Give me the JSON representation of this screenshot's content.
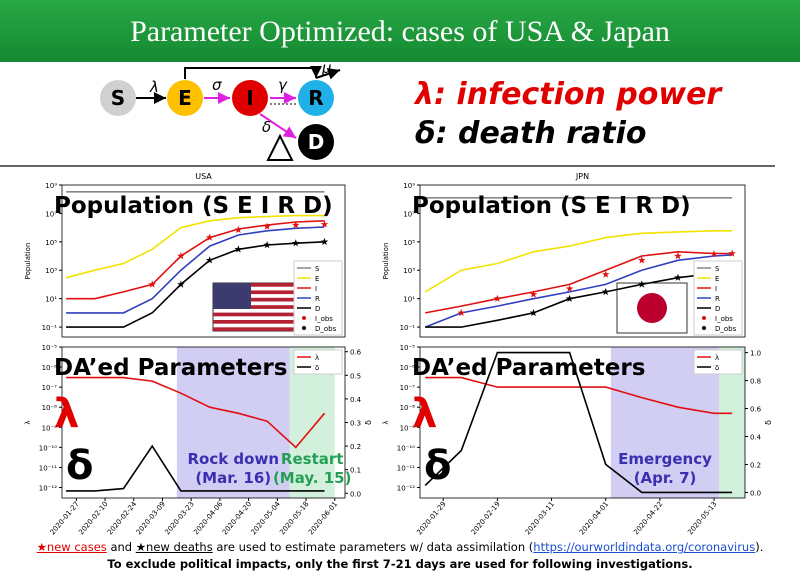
{
  "title": "Parameter Optimized: cases of USA & Japan",
  "diagram": {
    "nodes": [
      "S",
      "E",
      "I",
      "R",
      "D"
    ],
    "edge_labels": [
      "λ",
      "σ",
      "γ",
      "μ",
      "δ"
    ]
  },
  "key": {
    "lambda": "λ: infection power",
    "delta": "δ: death ratio"
  },
  "chart_data": [
    {
      "type": "line",
      "title": "USA",
      "overlay_title": "Population (S E I R D)",
      "ylabel": "Population",
      "ylog": true,
      "legend": "lower right",
      "x": [
        "2020-01-22",
        "2020-02-05",
        "2020-02-19",
        "2020-03-04",
        "2020-03-18",
        "2020-04-01",
        "2020-04-15",
        "2020-04-29",
        "2020-05-13",
        "2020-05-27"
      ],
      "xlim": [
        "2020-01-20",
        "2020-06-06"
      ],
      "ylim": [
        0.02,
        1000000000
      ],
      "yticks": [
        {
          "value": 0.1,
          "label": "10⁻¹"
        },
        {
          "value": 10,
          "label": "10¹"
        },
        {
          "value": 1000,
          "label": "10³"
        },
        {
          "value": 100000,
          "label": "10⁵"
        },
        {
          "value": 10000000,
          "label": "10⁷"
        },
        {
          "value": 1000000000,
          "label": "10⁹"
        }
      ],
      "series": [
        {
          "name": "S",
          "color": "#888888",
          "values": [
            330000000,
            330000000,
            330000000,
            330000000,
            330000000,
            330000000,
            330000000,
            330000000,
            330000000,
            330000000
          ]
        },
        {
          "name": "E",
          "color": "#f2e200",
          "values": [
            300,
            1000,
            3000,
            30000,
            1000000,
            3000000,
            5000000,
            6000000,
            7000000,
            7000000
          ]
        },
        {
          "name": "I",
          "color": "#e01010",
          "values": [
            10,
            10,
            30,
            100,
            10000,
            200000,
            800000,
            1500000,
            2500000,
            3000000
          ]
        },
        {
          "name": "R",
          "color": "#3040c0",
          "values": [
            1,
            1,
            1,
            10,
            1000,
            50000,
            300000,
            600000,
            900000,
            1100000
          ]
        },
        {
          "name": "D",
          "color": "#000000",
          "values": [
            0.1,
            0.1,
            0.1,
            1,
            100,
            5000,
            30000,
            60000,
            80000,
            100000
          ]
        },
        {
          "name": "I_obs",
          "color": "#e01010",
          "marker": "star",
          "values": [
            null,
            null,
            null,
            100,
            10000,
            200000,
            700000,
            1200000,
            1500000,
            1700000
          ]
        },
        {
          "name": "D_obs",
          "color": "#000000",
          "marker": "star",
          "values": [
            null,
            null,
            null,
            null,
            100,
            5000,
            30000,
            60000,
            80000,
            100000
          ]
        }
      ]
    },
    {
      "type": "line",
      "overlay_title": "DA’ed Parameters",
      "overlay_lambda": "λ",
      "overlay_delta": "δ",
      "ylabel": "λ",
      "y2label": "δ",
      "ylog": true,
      "legend": "upper right",
      "x": [
        "2020-01-22",
        "2020-02-05",
        "2020-02-19",
        "2020-03-04",
        "2020-03-18",
        "2020-04-01",
        "2020-04-15",
        "2020-04-29",
        "2020-05-13",
        "2020-05-27"
      ],
      "xlim": [
        "2020-01-20",
        "2020-06-06"
      ],
      "ylim": [
        3e-13,
        1e-05
      ],
      "yticks": [
        {
          "value": 1e-12,
          "label": "10⁻¹²"
        },
        {
          "value": 1e-11,
          "label": "10⁻¹¹"
        },
        {
          "value": 1e-10,
          "label": "10⁻¹⁰"
        },
        {
          "value": 1e-09,
          "label": "10⁻⁹"
        },
        {
          "value": 1e-08,
          "label": "10⁻⁸"
        },
        {
          "value": 1e-07,
          "label": "10⁻⁷"
        },
        {
          "value": 1e-06,
          "label": "10⁻⁶"
        },
        {
          "value": 1e-05,
          "label": "10⁻⁵"
        }
      ],
      "y2lim": [
        -0.02,
        0.62
      ],
      "y2ticks": [
        {
          "value": 0,
          "label": "0.0"
        },
        0.1,
        0.2,
        0.3,
        0.4,
        0.5,
        0.6
      ],
      "xticks": [
        "2020-01-27",
        "2020-02-10",
        "2020-02-24",
        "2020-03-09",
        "2020-03-23",
        "2020-04-06",
        "2020-04-20",
        "2020-05-04",
        "2020-05-18",
        "2020-06-01"
      ],
      "spans": [
        {
          "start": "2020-03-16",
          "end": "2020-05-10",
          "color": "#cdc8f2",
          "text_color": "#3a2fb0",
          "lines": [
            "Rock down",
            "(Mar. 16)"
          ]
        },
        {
          "start": "2020-05-10",
          "end": "2020-06-01",
          "color": "#cdeed8",
          "text_color": "#23a055",
          "lines": [
            "Restart",
            "(May. 15)"
          ]
        }
      ],
      "series": [
        {
          "name": "λ",
          "color": "#e01010",
          "values": [
            3e-07,
            3e-07,
            3e-07,
            2e-07,
            5e-08,
            1e-08,
            5e-09,
            2e-09,
            1e-10,
            5e-09
          ]
        },
        {
          "name": "δ",
          "color": "#000000",
          "axis": "y2",
          "values": [
            0.01,
            0.01,
            0.02,
            0.2,
            0.01,
            0.01,
            0.01,
            0.01,
            0.01,
            0.01
          ]
        }
      ]
    },
    {
      "type": "line",
      "title": "JPN",
      "overlay_title": "Population (S E I R D)",
      "ylabel": "Population",
      "ylog": true,
      "legend": "lower right",
      "x": [
        "2020-01-22",
        "2020-02-05",
        "2020-02-19",
        "2020-03-04",
        "2020-03-18",
        "2020-04-01",
        "2020-04-15",
        "2020-04-29",
        "2020-05-13",
        "2020-05-20"
      ],
      "xlim": [
        "2020-01-20",
        "2020-05-25"
      ],
      "ylim": [
        0.02,
        1000000000
      ],
      "yticks": [
        {
          "value": 0.1,
          "label": "10⁻¹"
        },
        {
          "value": 10,
          "label": "10¹"
        },
        {
          "value": 1000,
          "label": "10³"
        },
        {
          "value": 100000,
          "label": "10⁵"
        },
        {
          "value": 10000000,
          "label": "10⁷"
        },
        {
          "value": 1000000000,
          "label": "10⁹"
        }
      ],
      "series": [
        {
          "name": "S",
          "color": "#888888",
          "values": [
            126000000,
            126000000,
            126000000,
            126000000,
            126000000,
            126000000,
            126000000,
            126000000,
            126000000,
            126000000
          ]
        },
        {
          "name": "E",
          "color": "#f2e200",
          "values": [
            30,
            1000,
            3000,
            20000,
            50000,
            200000,
            400000,
            500000,
            600000,
            600000
          ]
        },
        {
          "name": "I",
          "color": "#e01010",
          "values": [
            1,
            3,
            10,
            30,
            100,
            1000,
            10000,
            20000,
            15000,
            15000
          ]
        },
        {
          "name": "R",
          "color": "#3040c0",
          "values": [
            0.1,
            1,
            3,
            10,
            30,
            100,
            1000,
            5000,
            10000,
            12000
          ]
        },
        {
          "name": "D",
          "color": "#000000",
          "values": [
            0.1,
            0.1,
            0.3,
            1,
            10,
            30,
            100,
            300,
            600,
            700
          ]
        },
        {
          "name": "I_obs",
          "color": "#e01010",
          "marker": "star",
          "values": [
            null,
            1,
            10,
            20,
            50,
            500,
            5000,
            10000,
            14000,
            15000
          ]
        },
        {
          "name": "D_obs",
          "color": "#000000",
          "marker": "star",
          "values": [
            null,
            null,
            null,
            1,
            10,
            30,
            100,
            300,
            600,
            700
          ]
        }
      ]
    },
    {
      "type": "line",
      "overlay_title": "DA’ed Parameters",
      "overlay_lambda": "λ",
      "overlay_delta": "δ",
      "ylabel": "λ",
      "y2label": "δ",
      "ylog": true,
      "legend": "upper right",
      "x": [
        "2020-01-22",
        "2020-02-05",
        "2020-02-19",
        "2020-03-04",
        "2020-03-18",
        "2020-04-01",
        "2020-04-15",
        "2020-04-29",
        "2020-05-13",
        "2020-05-20"
      ],
      "xlim": [
        "2020-01-20",
        "2020-05-25"
      ],
      "ylim": [
        3e-13,
        1e-05
      ],
      "yticks": [
        {
          "value": 1e-12,
          "label": "10⁻¹²"
        },
        {
          "value": 1e-11,
          "label": "10⁻¹¹"
        },
        {
          "value": 1e-10,
          "label": "10⁻¹⁰"
        },
        {
          "value": 1e-09,
          "label": "10⁻⁹"
        },
        {
          "value": 1e-08,
          "label": "10⁻⁸"
        },
        {
          "value": 1e-07,
          "label": "10⁻⁷"
        },
        {
          "value": 1e-06,
          "label": "10⁻⁶"
        },
        {
          "value": 1e-05,
          "label": "10⁻⁵"
        }
      ],
      "y2lim": [
        -0.04,
        1.04
      ],
      "y2ticks": [
        {
          "value": 0,
          "label": "0.0"
        },
        0.2,
        0.4,
        0.6,
        0.8,
        {
          "value": 1,
          "label": "1.0"
        }
      ],
      "xticks": [
        "2020-01-29",
        "2020-02-19",
        "2020-03-11",
        "2020-04-01",
        "2020-04-22",
        "2020-05-13"
      ],
      "spans": [
        {
          "start": "2020-04-03",
          "end": "2020-05-15",
          "color": "#cdc8f2",
          "text_color": "#3a2fb0",
          "lines": [
            "Emergency",
            "(Apr. 7)"
          ]
        },
        {
          "start": "2020-05-15",
          "end": "2020-05-25",
          "color": "#cdeed8",
          "text_color": "#23a055",
          "lines": []
        }
      ],
      "series": [
        {
          "name": "λ",
          "color": "#e01010",
          "values": [
            3e-07,
            3e-07,
            1e-07,
            1e-07,
            1e-07,
            1e-07,
            3e-08,
            1e-08,
            5e-09,
            5e-09
          ]
        },
        {
          "name": "δ",
          "color": "#000000",
          "axis": "y2",
          "values": [
            0.05,
            0.3,
            1,
            1,
            1,
            0.2,
            0,
            0,
            0,
            0
          ]
        }
      ]
    }
  ],
  "footer": {
    "line1": [
      "★new cases",
      " and ",
      "★new deaths",
      " are used to estimate parameters w/ data assimilation (",
      "https://ourworldindata.org/coronavirus",
      ")."
    ],
    "line2": "To exclude political impacts, only the first 7-21 days are used for following investigations."
  }
}
